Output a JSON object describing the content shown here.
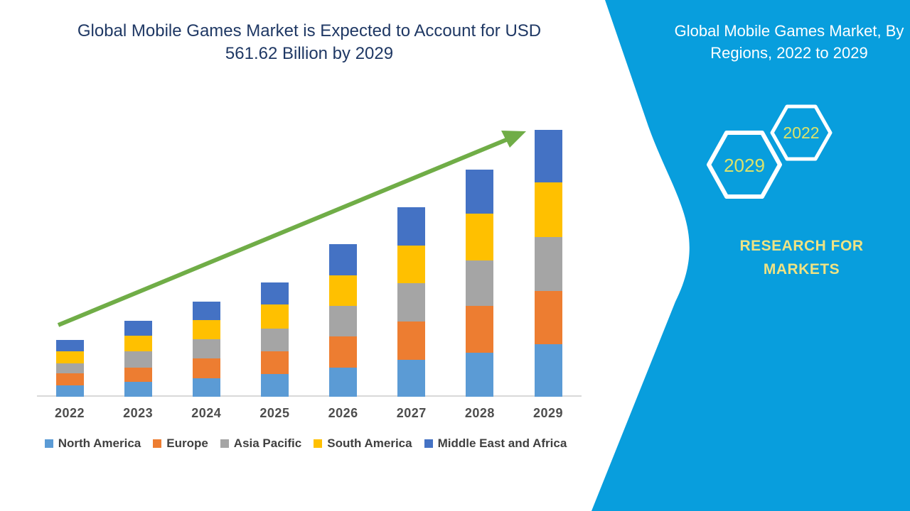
{
  "headline": {
    "lines": [
      "Global Mobile Games Market is Expected to Account for USD",
      "561.62 Billion by 2029"
    ]
  },
  "side_panel": {
    "title_lines": [
      "Global Mobile Games Market, By",
      "Regions, 2022 to 2029"
    ],
    "hexagons": [
      {
        "label": "2022"
      },
      {
        "label": "2029"
      }
    ],
    "brand_lines": [
      "RESEARCH FOR",
      "MARKETS"
    ]
  },
  "colors": {
    "panel_blue": "#089EDD",
    "headline_navy": "#1F3864",
    "brand_yellow": "#EFE383",
    "hex_year_yellow": "#DCE36A",
    "arrow_green": "#70AD47",
    "axis_gray": "#D9D9D9",
    "label_gray": "#4D4D4D"
  },
  "chart_data": {
    "type": "bar",
    "stacked": true,
    "title": "Global Mobile Games Market is Expected to Account for USD 561.62 Billion by 2029",
    "unit": "USD Billion (values estimated from bar heights; 2029 total anchored to 561.62)",
    "categories": [
      "2022",
      "2023",
      "2024",
      "2025",
      "2026",
      "2027",
      "2028",
      "2029"
    ],
    "series": [
      {
        "name": "North America",
        "color": "#5B9BD5",
        "values": [
          24,
          31,
          39,
          48,
          61,
          78,
          93,
          110
        ]
      },
      {
        "name": "Europe",
        "color": "#ED7D31",
        "values": [
          25,
          31,
          42,
          47,
          66,
          81,
          98,
          113
        ]
      },
      {
        "name": "Asia Pacific",
        "color": "#A5A5A5",
        "values": [
          22,
          33,
          40,
          48,
          65,
          81,
          96,
          113
        ]
      },
      {
        "name": "South America",
        "color": "#FFC000",
        "values": [
          24,
          34,
          40,
          51,
          64,
          78,
          99,
          115
        ]
      },
      {
        "name": "Middle East and Africa",
        "color": "#4472C4",
        "values": [
          24,
          31,
          40,
          47,
          65,
          82,
          93,
          111
        ]
      }
    ],
    "totals_estimated": [
      119,
      160,
      201,
      241,
      321,
      400,
      479,
      561.62
    ],
    "ylim": [
      0,
      600
    ],
    "gridlines": false,
    "legend_position": "bottom",
    "annotation": "green upward trend arrow spanning 2022 to 2029"
  }
}
